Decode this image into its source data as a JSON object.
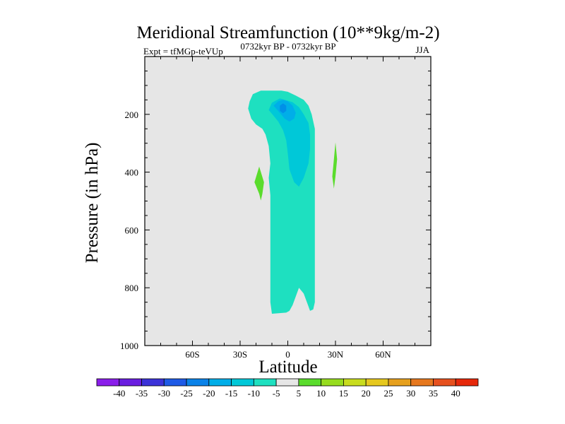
{
  "chart_data": {
    "type": "contour",
    "title": "Meridional Streamfunction (10**9kg/m-2)",
    "subtitle_left": "Expt = tfMGp-teVUp",
    "subtitle_center": "0732kyr BP - 0732kyr BP",
    "subtitle_right": "JJA",
    "xlabel": "Latitude",
    "ylabel": "Pressure (in hPa)",
    "xlim": [
      -90,
      90
    ],
    "ylim": [
      1000,
      0
    ],
    "x_ticks": [
      {
        "value": -60,
        "label": "60S"
      },
      {
        "value": -30,
        "label": "30S"
      },
      {
        "value": 0,
        "label": "0"
      },
      {
        "value": 30,
        "label": "30N"
      },
      {
        "value": 60,
        "label": "60N"
      }
    ],
    "y_ticks": [
      {
        "value": 200,
        "label": "200"
      },
      {
        "value": 400,
        "label": "400"
      },
      {
        "value": 600,
        "label": "600"
      },
      {
        "value": 800,
        "label": "800"
      },
      {
        "value": 1000,
        "label": "1000"
      }
    ],
    "plot_background": "#e6e6e6",
    "regions": [
      {
        "name": "cell-weak-negative",
        "level": "-10 to -5",
        "color": "#1ee0c0",
        "points": [
          [
            -10,
            890
          ],
          [
            -11,
            850
          ],
          [
            -11,
            780
          ],
          [
            -11,
            700
          ],
          [
            -11,
            620
          ],
          [
            -11,
            550
          ],
          [
            -11,
            480
          ],
          [
            -12,
            420
          ],
          [
            -11,
            370
          ],
          [
            -12,
            310
          ],
          [
            -14,
            270
          ],
          [
            -16,
            250
          ],
          [
            -20,
            235
          ],
          [
            -23,
            215
          ],
          [
            -25,
            180
          ],
          [
            -24,
            155
          ],
          [
            -22,
            130
          ],
          [
            -17,
            118
          ],
          [
            -10,
            118
          ],
          [
            -4,
            118
          ],
          [
            0,
            122
          ],
          [
            5,
            135
          ],
          [
            10,
            150
          ],
          [
            13,
            170
          ],
          [
            15,
            200
          ],
          [
            17,
            250
          ],
          [
            17,
            350
          ],
          [
            17,
            450
          ],
          [
            17,
            550
          ],
          [
            17,
            650
          ],
          [
            17,
            750
          ],
          [
            17,
            850
          ],
          [
            16,
            875
          ],
          [
            14,
            880
          ],
          [
            13,
            865
          ],
          [
            10,
            820
          ],
          [
            7,
            800
          ],
          [
            5,
            830
          ],
          [
            3,
            860
          ],
          [
            1,
            880
          ],
          [
            -1,
            886
          ]
        ]
      },
      {
        "name": "cell-negative-core-1",
        "level": "-15 to -10",
        "color": "#00c8d8",
        "points": [
          [
            -12,
            185
          ],
          [
            -10,
            160
          ],
          [
            -5,
            145
          ],
          [
            -2,
            150
          ],
          [
            3,
            158
          ],
          [
            7,
            175
          ],
          [
            10,
            200
          ],
          [
            13,
            230
          ],
          [
            14,
            270
          ],
          [
            14,
            320
          ],
          [
            13,
            370
          ],
          [
            10,
            420
          ],
          [
            7,
            450
          ],
          [
            4,
            435
          ],
          [
            1,
            390
          ],
          [
            0,
            335
          ],
          [
            -1,
            290
          ],
          [
            -3,
            255
          ],
          [
            -6,
            225
          ],
          [
            -9,
            205
          ]
        ]
      },
      {
        "name": "cell-negative-core-2",
        "level": "-20 to -15",
        "color": "#00aee8",
        "points": [
          [
            -9,
            170
          ],
          [
            -6,
            155
          ],
          [
            -3,
            150
          ],
          [
            0,
            155
          ],
          [
            3,
            170
          ],
          [
            5,
            195
          ],
          [
            4,
            215
          ],
          [
            1,
            225
          ],
          [
            -2,
            215
          ],
          [
            -5,
            195
          ]
        ]
      },
      {
        "name": "cell-negative-core-3",
        "level": "-25 to -20",
        "color": "#0090e8",
        "points": [
          [
            -5,
            170
          ],
          [
            -3,
            162
          ],
          [
            -1,
            170
          ],
          [
            -1,
            188
          ],
          [
            -3,
            196
          ],
          [
            -5,
            188
          ]
        ]
      },
      {
        "name": "cell-positive-1",
        "level": "5 to 10",
        "color": "#5adc2c",
        "points": [
          [
            -18,
            381
          ],
          [
            -15,
            435
          ],
          [
            -16,
            475
          ],
          [
            -17,
            498
          ],
          [
            -18,
            475
          ],
          [
            -21,
            435
          ]
        ]
      },
      {
        "name": "cell-positive-2",
        "level": "5 to 10",
        "color": "#5adc2c",
        "points": [
          [
            30,
            297
          ],
          [
            31,
            355
          ],
          [
            30,
            415
          ],
          [
            29,
            457
          ],
          [
            28,
            415
          ],
          [
            29,
            355
          ]
        ]
      }
    ],
    "colorbar": {
      "labels": [
        "-40",
        "-35",
        "-30",
        "-25",
        "-20",
        "-15",
        "-10",
        "-5",
        "5",
        "10",
        "15",
        "20",
        "25",
        "30",
        "35",
        "40"
      ],
      "colors": [
        "#8a1eea",
        "#6a1ee0",
        "#3c32d8",
        "#1e5ae6",
        "#0a82e8",
        "#00aee8",
        "#00c8d8",
        "#1ee0c0",
        "#e6e6e6",
        "#5adc2c",
        "#96dc1e",
        "#c8dc1e",
        "#e6c81e",
        "#e6a01e",
        "#e6781e",
        "#e6501e",
        "#e6280a"
      ]
    }
  }
}
